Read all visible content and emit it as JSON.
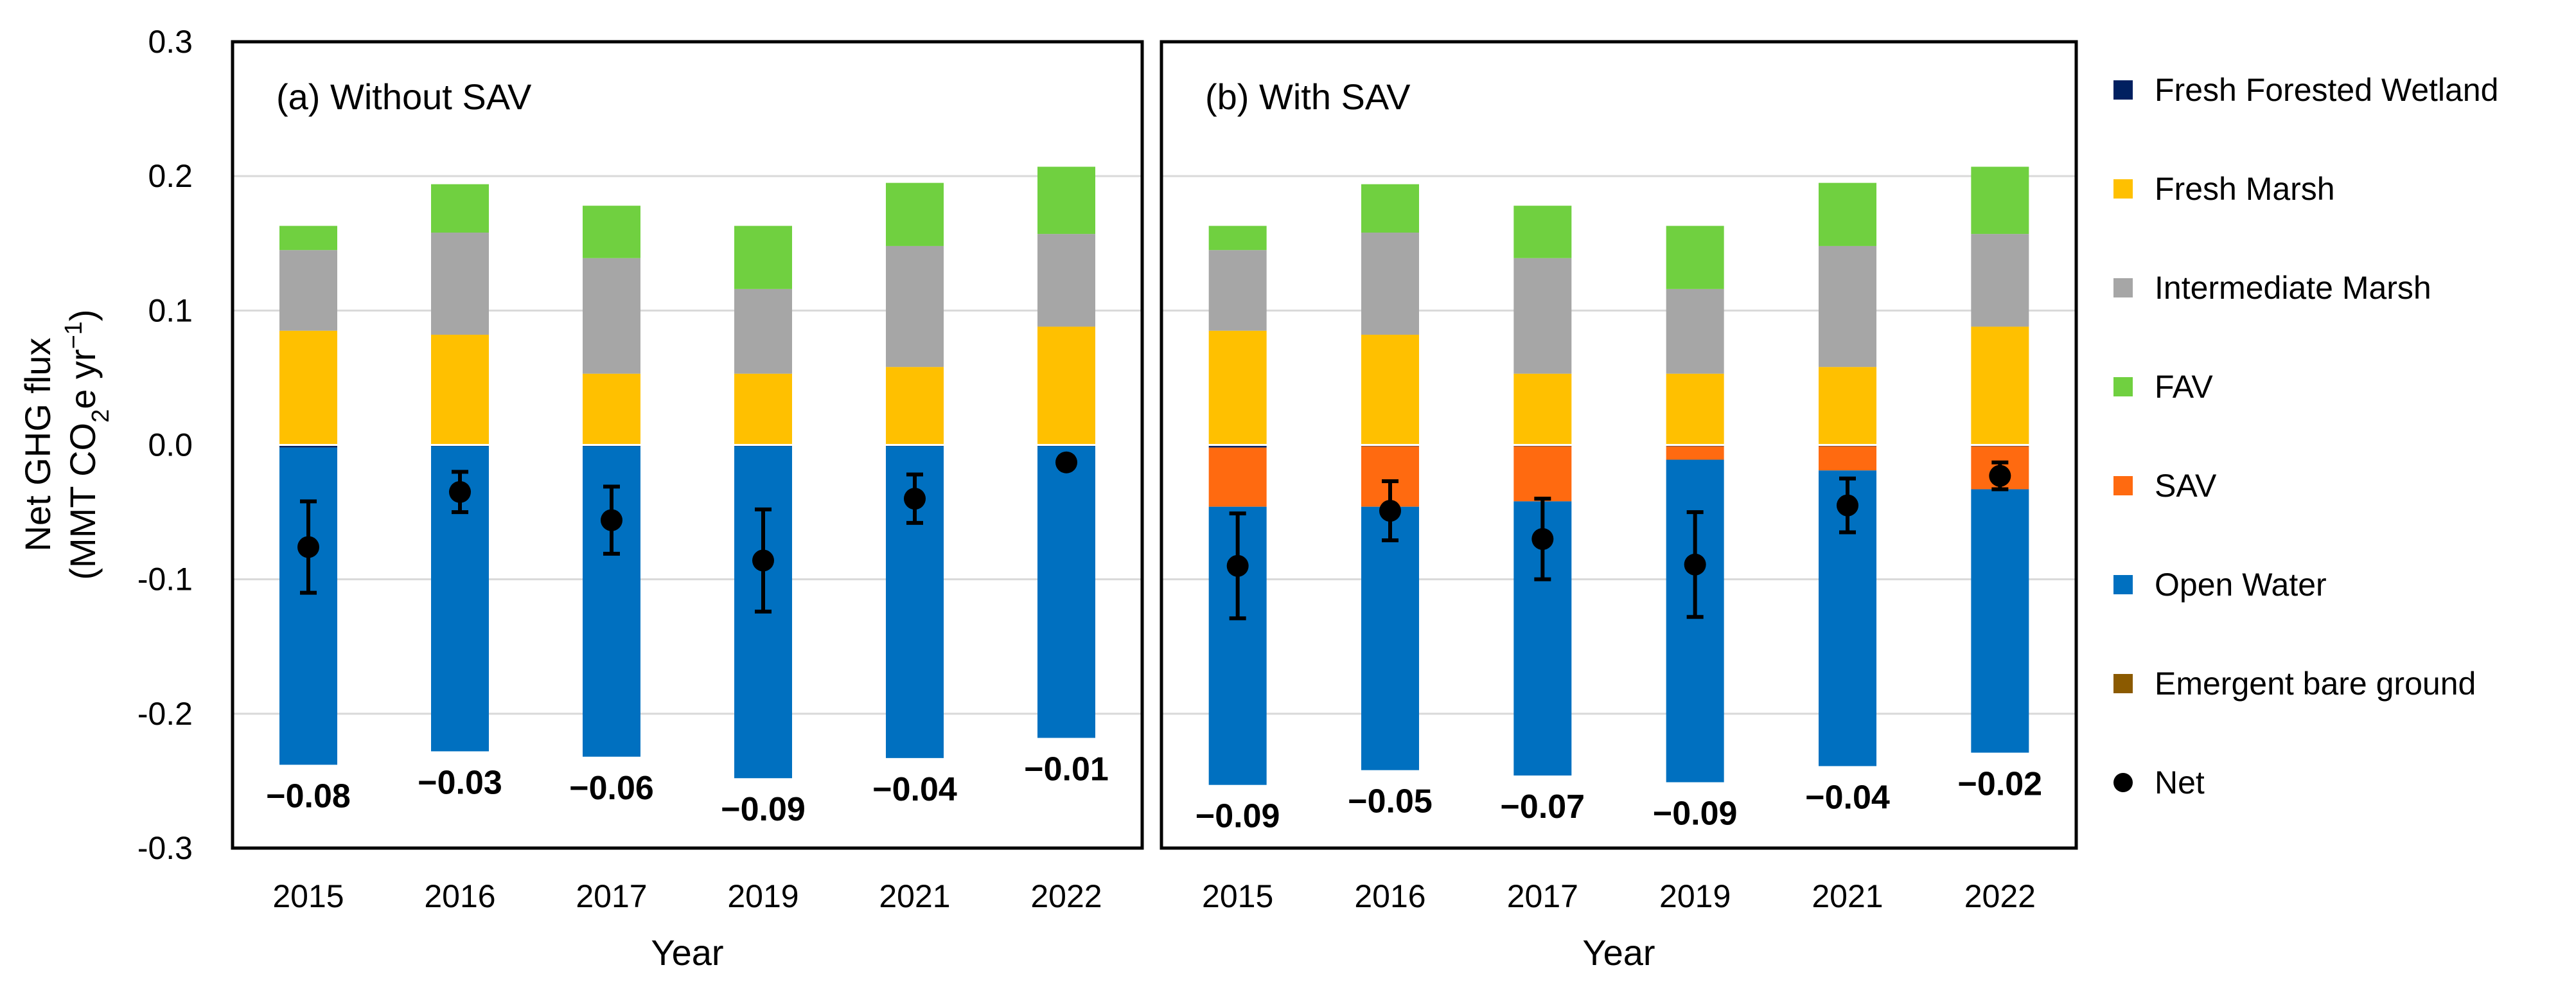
{
  "chart_data": {
    "type": "bar",
    "stacked": true,
    "ylabel": {
      "line1": "Net GHG flux",
      "line2_prefix": "(MMT CO",
      "line2_sub": "2",
      "line2_mid": "e yr",
      "line2_sup": "−1",
      "line2_suffix": ")"
    },
    "xlabel": "Year",
    "ylim": [
      -0.3,
      0.3
    ],
    "yticks": [
      "0.3",
      "0.2",
      "0.1",
      "0.0",
      "-0.1",
      "-0.2",
      "-0.3"
    ],
    "ytick_values": [
      0.3,
      0.2,
      0.1,
      0.0,
      -0.1,
      -0.2,
      -0.3
    ],
    "legend": [
      {
        "name": "Fresh Forested Wetland",
        "color": "#002060",
        "marker": "square"
      },
      {
        "name": "Fresh Marsh",
        "color": "#FFC000",
        "marker": "square"
      },
      {
        "name": "Intermediate Marsh",
        "color": "#A6A6A6",
        "marker": "square"
      },
      {
        "name": "FAV",
        "color": "#70D040",
        "marker": "square"
      },
      {
        "name": "SAV",
        "color": "#FF6A10",
        "marker": "square"
      },
      {
        "name": "Open Water",
        "color": "#0070C0",
        "marker": "square"
      },
      {
        "name": "Emergent bare ground",
        "color": "#8B5A00",
        "marker": "square"
      },
      {
        "name": "Net",
        "color": "#000000",
        "marker": "circle"
      }
    ],
    "panels": [
      {
        "title": "(a) Without SAV",
        "categories": [
          "2015",
          "2016",
          "2017",
          "2019",
          "2021",
          "2022"
        ],
        "series": [
          {
            "name": "Fresh Marsh",
            "values": [
              0.085,
              0.082,
              0.053,
              0.053,
              0.058,
              0.088
            ]
          },
          {
            "name": "Intermediate Marsh",
            "values": [
              0.06,
              0.076,
              0.086,
              0.063,
              0.09,
              0.069
            ]
          },
          {
            "name": "FAV",
            "values": [
              0.018,
              0.036,
              0.039,
              0.047,
              0.047,
              0.05
            ]
          },
          {
            "name": "Fresh Forested Wetland",
            "values": [
              -0.002,
              -0.001,
              -0.001,
              -0.001,
              -0.001,
              -0.001
            ]
          },
          {
            "name": "SAV",
            "values": [
              0,
              0,
              0,
              0,
              0,
              0
            ]
          },
          {
            "name": "Open Water",
            "values": [
              -0.236,
              -0.227,
              -0.231,
              -0.247,
              -0.232,
              -0.217
            ]
          }
        ],
        "net": [
          -0.076,
          -0.035,
          -0.056,
          -0.086,
          -0.04,
          -0.013
        ],
        "net_err": [
          0.034,
          0.015,
          0.025,
          0.038,
          0.018,
          0.004
        ],
        "net_labels": [
          "−0.08",
          "−0.03",
          "−0.06",
          "−0.09",
          "−0.04",
          "−0.01"
        ]
      },
      {
        "title": "(b) With SAV",
        "categories": [
          "2015",
          "2016",
          "2017",
          "2019",
          "2021",
          "2022"
        ],
        "series": [
          {
            "name": "Fresh Marsh",
            "values": [
              0.085,
              0.082,
              0.053,
              0.053,
              0.058,
              0.088
            ]
          },
          {
            "name": "Intermediate Marsh",
            "values": [
              0.06,
              0.076,
              0.086,
              0.063,
              0.09,
              0.069
            ]
          },
          {
            "name": "FAV",
            "values": [
              0.018,
              0.036,
              0.039,
              0.047,
              0.047,
              0.05
            ]
          },
          {
            "name": "Fresh Forested Wetland",
            "values": [
              -0.002,
              -0.001,
              -0.001,
              -0.001,
              -0.001,
              -0.001
            ]
          },
          {
            "name": "SAV",
            "values": [
              -0.044,
              -0.045,
              -0.041,
              -0.01,
              -0.018,
              -0.032
            ]
          },
          {
            "name": "Open Water",
            "values": [
              -0.207,
              -0.196,
              -0.204,
              -0.24,
              -0.22,
              -0.196
            ]
          }
        ],
        "net": [
          -0.09,
          -0.049,
          -0.07,
          -0.089,
          -0.045,
          -0.023
        ],
        "net_err": [
          0.039,
          0.022,
          0.03,
          0.039,
          0.02,
          0.01
        ],
        "net_labels": [
          "−0.09",
          "−0.05",
          "−0.07",
          "−0.09",
          "−0.04",
          "−0.02"
        ]
      }
    ]
  }
}
